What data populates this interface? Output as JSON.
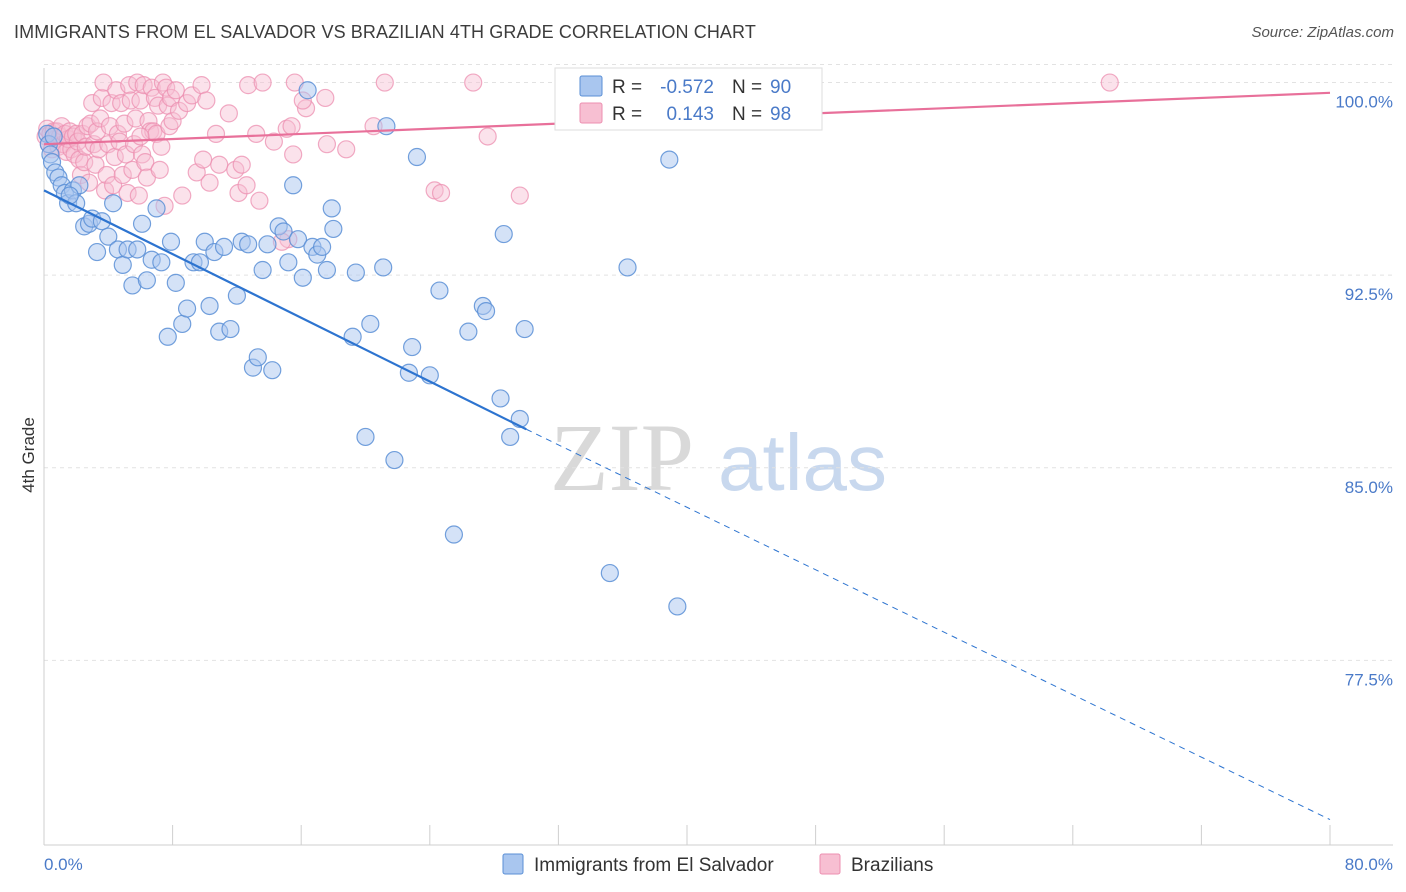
{
  "title": "IMMIGRANTS FROM EL SALVADOR VS BRAZILIAN 4TH GRADE CORRELATION CHART",
  "source": "Source: ZipAtlas.com",
  "watermark": {
    "zip": "ZIP",
    "atlas": "atlas"
  },
  "colors": {
    "blue_fill": "#a9c6ef",
    "blue_stroke": "#5a8fd6",
    "blue_line": "#2d74d0",
    "pink_fill": "#f7bfd2",
    "pink_stroke": "#ec8fb0",
    "pink_line": "#e8709a",
    "tick_text": "#4a7ac8",
    "grid": "#e2e2e2"
  },
  "legend_box": {
    "rows": [
      {
        "r_label": "R =",
        "r_value": "-0.572",
        "n_label": "N =",
        "n_value": "90"
      },
      {
        "r_label": "R =",
        "r_value": "0.143",
        "n_label": "N =",
        "n_value": "98"
      }
    ]
  },
  "chart_data": {
    "type": "scatter",
    "title": "IMMIGRANTS FROM EL SALVADOR VS BRAZILIAN 4TH GRADE CORRELATION CHART",
    "xlabel": "",
    "ylabel": "4th Grade",
    "xlim": [
      0,
      80
    ],
    "ylim": [
      70.7,
      100.8
    ],
    "x_tick_labels": [
      "0.0%",
      "80.0%"
    ],
    "y_ticks": [
      77.5,
      85.0,
      92.5,
      100.0
    ],
    "y_tick_labels": [
      "77.5%",
      "85.0%",
      "92.5%",
      "100.0%"
    ],
    "grid": true,
    "legend_position": "bottom-center",
    "series": [
      {
        "name": "Immigrants from El Salvador",
        "r": -0.572,
        "n": 90,
        "trend": {
          "x0": 0.0,
          "y0": 95.8,
          "x1": 30.0,
          "y1": 86.5,
          "dashed_to_x": 80.0,
          "dashed_to_y": 71.3
        },
        "points": [
          [
            0.2,
            98.0
          ],
          [
            0.3,
            97.6
          ],
          [
            0.4,
            97.2
          ],
          [
            0.5,
            96.9
          ],
          [
            0.7,
            96.5
          ],
          [
            0.9,
            96.3
          ],
          [
            1.1,
            96.0
          ],
          [
            1.3,
            95.7
          ],
          [
            1.5,
            95.3
          ],
          [
            1.8,
            95.8
          ],
          [
            2.0,
            95.3
          ],
          [
            2.2,
            96.0
          ],
          [
            2.5,
            94.4
          ],
          [
            2.8,
            94.5
          ],
          [
            3.0,
            94.7
          ],
          [
            3.3,
            93.4
          ],
          [
            3.6,
            94.6
          ],
          [
            4.0,
            94.0
          ],
          [
            4.3,
            95.3
          ],
          [
            4.6,
            93.5
          ],
          [
            4.9,
            92.9
          ],
          [
            5.2,
            93.5
          ],
          [
            5.5,
            92.1
          ],
          [
            5.8,
            93.5
          ],
          [
            6.1,
            94.5
          ],
          [
            6.4,
            92.3
          ],
          [
            6.7,
            93.1
          ],
          [
            7.0,
            95.1
          ],
          [
            7.3,
            93.0
          ],
          [
            7.7,
            90.1
          ],
          [
            7.9,
            93.8
          ],
          [
            8.2,
            92.2
          ],
          [
            8.6,
            90.6
          ],
          [
            8.9,
            91.2
          ],
          [
            9.3,
            93.0
          ],
          [
            9.7,
            93.0
          ],
          [
            10.0,
            93.8
          ],
          [
            10.3,
            91.3
          ],
          [
            10.6,
            93.4
          ],
          [
            10.9,
            90.3
          ],
          [
            11.2,
            93.6
          ],
          [
            11.6,
            90.4
          ],
          [
            12.0,
            91.7
          ],
          [
            12.3,
            93.8
          ],
          [
            12.7,
            93.7
          ],
          [
            13.0,
            88.9
          ],
          [
            13.3,
            89.3
          ],
          [
            13.6,
            92.7
          ],
          [
            13.9,
            93.7
          ],
          [
            14.2,
            88.8
          ],
          [
            14.6,
            94.4
          ],
          [
            14.9,
            94.2
          ],
          [
            15.2,
            93.0
          ],
          [
            15.5,
            96.0
          ],
          [
            15.8,
            93.9
          ],
          [
            16.1,
            92.4
          ],
          [
            16.4,
            99.7
          ],
          [
            16.7,
            93.6
          ],
          [
            17.0,
            93.3
          ],
          [
            17.3,
            93.6
          ],
          [
            17.6,
            92.7
          ],
          [
            17.9,
            95.1
          ],
          [
            18.0,
            94.3
          ],
          [
            19.2,
            90.1
          ],
          [
            19.4,
            92.6
          ],
          [
            20.0,
            86.2
          ],
          [
            20.3,
            90.6
          ],
          [
            21.1,
            92.8
          ],
          [
            21.3,
            98.3
          ],
          [
            21.8,
            85.3
          ],
          [
            22.7,
            88.7
          ],
          [
            22.9,
            89.7
          ],
          [
            23.2,
            97.1
          ],
          [
            24.0,
            88.6
          ],
          [
            24.6,
            91.9
          ],
          [
            25.5,
            82.4
          ],
          [
            26.4,
            90.3
          ],
          [
            27.3,
            91.3
          ],
          [
            27.5,
            91.1
          ],
          [
            28.4,
            87.7
          ],
          [
            28.6,
            94.1
          ],
          [
            29.0,
            86.2
          ],
          [
            29.6,
            86.9
          ],
          [
            29.9,
            90.4
          ],
          [
            35.2,
            80.9
          ],
          [
            36.3,
            92.8
          ],
          [
            38.9,
            97.0
          ],
          [
            39.4,
            79.6
          ],
          [
            0.6,
            97.9
          ],
          [
            1.6,
            95.6
          ]
        ]
      },
      {
        "name": "Brazilians",
        "r": 0.143,
        "n": 98,
        "trend": {
          "x0": 0.0,
          "y0": 97.6,
          "x1": 80.0,
          "y1": 99.6
        },
        "points": [
          [
            0.1,
            97.9
          ],
          [
            0.2,
            98.2
          ],
          [
            0.3,
            97.6
          ],
          [
            0.4,
            98.0
          ],
          [
            0.5,
            97.4
          ],
          [
            0.6,
            98.1
          ],
          [
            0.7,
            97.8
          ],
          [
            0.8,
            98.1
          ],
          [
            0.9,
            97.5
          ],
          [
            1.0,
            97.9
          ],
          [
            1.1,
            98.3
          ],
          [
            1.2,
            97.6
          ],
          [
            1.3,
            98.0
          ],
          [
            1.4,
            97.3
          ],
          [
            1.5,
            97.8
          ],
          [
            1.6,
            98.1
          ],
          [
            1.7,
            97.4
          ],
          [
            1.8,
            97.9
          ],
          [
            1.9,
            97.2
          ],
          [
            2.0,
            98.0
          ],
          [
            2.1,
            97.7
          ],
          [
            2.2,
            97.0
          ],
          [
            2.3,
            96.4
          ],
          [
            2.4,
            98.0
          ],
          [
            2.5,
            96.9
          ],
          [
            2.6,
            97.5
          ],
          [
            2.7,
            98.3
          ],
          [
            2.8,
            96.1
          ],
          [
            2.9,
            98.4
          ],
          [
            3.0,
            99.2
          ],
          [
            3.1,
            97.6
          ],
          [
            3.2,
            96.8
          ],
          [
            3.3,
            98.1
          ],
          [
            3.4,
            97.4
          ],
          [
            3.5,
            98.6
          ],
          [
            3.6,
            99.4
          ],
          [
            3.7,
            100.0
          ],
          [
            3.8,
            95.8
          ],
          [
            3.9,
            96.4
          ],
          [
            4.0,
            97.6
          ],
          [
            4.1,
            98.3
          ],
          [
            4.2,
            99.2
          ],
          [
            4.3,
            96.0
          ],
          [
            4.4,
            97.1
          ],
          [
            4.5,
            99.7
          ],
          [
            4.6,
            98.0
          ],
          [
            4.7,
            97.7
          ],
          [
            4.8,
            99.2
          ],
          [
            4.9,
            96.4
          ],
          [
            5.0,
            98.4
          ],
          [
            5.1,
            97.2
          ],
          [
            5.2,
            95.7
          ],
          [
            5.3,
            99.9
          ],
          [
            5.4,
            99.3
          ],
          [
            5.5,
            96.6
          ],
          [
            5.6,
            97.6
          ],
          [
            5.7,
            98.6
          ],
          [
            5.8,
            100.0
          ],
          [
            5.9,
            95.6
          ],
          [
            6.0,
            99.3
          ],
          [
            6.1,
            97.2
          ],
          [
            6.2,
            99.9
          ],
          [
            6.3,
            96.9
          ],
          [
            6.4,
            96.3
          ],
          [
            6.5,
            98.5
          ],
          [
            6.6,
            98.1
          ],
          [
            6.7,
            99.8
          ],
          [
            6.8,
            98.1
          ],
          [
            6.9,
            99.4
          ],
          [
            7.0,
            98.0
          ],
          [
            7.1,
            99.1
          ],
          [
            7.2,
            96.6
          ],
          [
            7.3,
            97.5
          ],
          [
            7.4,
            100.0
          ],
          [
            7.5,
            95.2
          ],
          [
            7.6,
            99.8
          ],
          [
            7.7,
            99.1
          ],
          [
            7.8,
            98.3
          ],
          [
            7.9,
            99.4
          ],
          [
            8.0,
            98.5
          ],
          [
            8.2,
            99.7
          ],
          [
            8.4,
            98.9
          ],
          [
            8.6,
            95.6
          ],
          [
            8.9,
            99.2
          ],
          [
            9.2,
            99.5
          ],
          [
            9.5,
            96.5
          ],
          [
            9.8,
            99.9
          ],
          [
            10.1,
            99.3
          ],
          [
            10.7,
            98.0
          ],
          [
            10.9,
            96.8
          ],
          [
            11.5,
            98.8
          ],
          [
            11.9,
            96.6
          ],
          [
            12.3,
            96.8
          ],
          [
            12.7,
            99.9
          ],
          [
            13.2,
            98.0
          ],
          [
            13.6,
            100.0
          ],
          [
            14.3,
            97.7
          ],
          [
            15.5,
            97.2
          ]
        ],
        "extra_points": [
          [
            6.0,
            97.9
          ],
          [
            9.9,
            97.0
          ],
          [
            10.3,
            96.1
          ],
          [
            12.1,
            95.7
          ],
          [
            12.6,
            96.0
          ],
          [
            13.4,
            95.4
          ],
          [
            15.1,
            98.2
          ],
          [
            15.4,
            98.3
          ],
          [
            16.3,
            99.0
          ],
          [
            17.6,
            97.6
          ],
          [
            18.8,
            97.4
          ],
          [
            20.5,
            98.3
          ],
          [
            21.2,
            100.0
          ],
          [
            24.3,
            95.8
          ],
          [
            24.7,
            95.7
          ],
          [
            26.7,
            100.0
          ],
          [
            27.6,
            97.9
          ],
          [
            29.6,
            95.6
          ],
          [
            38.7,
            100.0
          ],
          [
            66.3,
            100.0
          ],
          [
            16.1,
            99.3
          ],
          [
            17.5,
            99.4
          ],
          [
            15.6,
            100.0
          ],
          [
            15.2,
            93.9
          ],
          [
            14.8,
            93.8
          ]
        ]
      }
    ]
  }
}
